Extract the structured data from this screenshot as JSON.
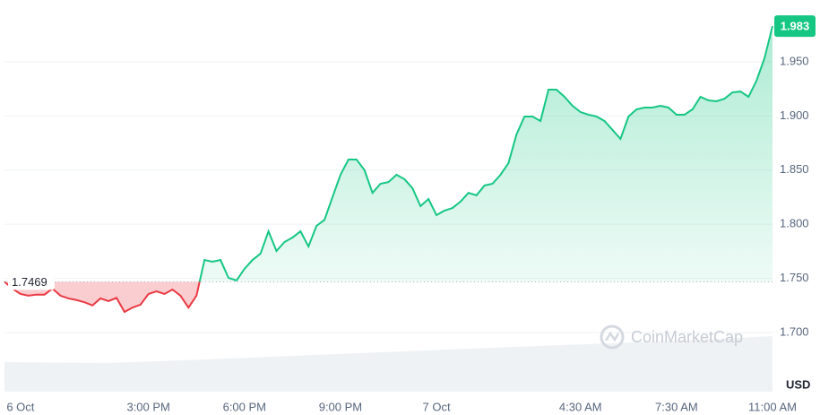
{
  "chart_data": {
    "type": "line",
    "categories": [
      null,
      null,
      "6 Oct",
      null,
      null,
      null,
      null,
      null,
      null,
      null,
      null,
      null,
      null,
      null,
      null,
      null,
      null,
      null,
      "3:00 PM",
      null,
      null,
      null,
      null,
      null,
      null,
      null,
      null,
      null,
      null,
      null,
      "6:00 PM",
      null,
      null,
      null,
      null,
      null,
      null,
      null,
      null,
      null,
      null,
      null,
      "9:00 PM",
      null,
      null,
      null,
      null,
      null,
      null,
      null,
      null,
      null,
      null,
      null,
      "7 Oct",
      null,
      null,
      null,
      null,
      null,
      null,
      null,
      null,
      null,
      null,
      null,
      null,
      null,
      null,
      null,
      null,
      null,
      "4:30 AM",
      null,
      null,
      null,
      null,
      null,
      null,
      null,
      null,
      null,
      null,
      null,
      "7:30 AM",
      null,
      null,
      null,
      null,
      null,
      null,
      null,
      null,
      null,
      null,
      null,
      "11:00 AM"
    ],
    "values": [
      1.747,
      1.7405,
      1.7356,
      1.734,
      1.735,
      1.735,
      1.7405,
      1.734,
      1.7315,
      1.73,
      1.728,
      1.725,
      1.7315,
      1.729,
      1.732,
      1.719,
      1.723,
      1.7257,
      1.7356,
      1.738,
      1.7356,
      1.7397,
      1.734,
      1.723,
      1.734,
      1.767,
      1.7654,
      1.767,
      1.7505,
      1.748,
      1.7588,
      1.767,
      1.7728,
      1.7935,
      1.7753,
      1.7836,
      1.7877,
      1.7935,
      1.7795,
      1.7985,
      1.804,
      1.825,
      1.8457,
      1.8598,
      1.8598,
      1.85,
      1.829,
      1.8374,
      1.839,
      1.8457,
      1.8416,
      1.8333,
      1.8167,
      1.8233,
      1.8084,
      1.8126,
      1.815,
      1.8209,
      1.829,
      1.8267,
      1.8358,
      1.8374,
      1.8457,
      1.8565,
      1.883,
      1.8995,
      1.8995,
      1.8954,
      1.9243,
      1.9243,
      1.9177,
      1.9094,
      1.9036,
      1.9012,
      1.8995,
      1.8954,
      1.8871,
      1.8788,
      1.8995,
      1.9061,
      1.9078,
      1.9078,
      1.9094,
      1.9078,
      1.9012,
      1.9012,
      1.9061,
      1.9177,
      1.9144,
      1.9136,
      1.916,
      1.9218,
      1.9226,
      1.9177,
      1.9326,
      1.9533,
      1.983
    ],
    "reference": 1.7469,
    "current_price": 1.983,
    "currency": "USD",
    "watermark": "CoinMarketCap",
    "up_color": "#16c784",
    "down_color": "#ea3943",
    "ylim": [
      1.645,
      2.0
    ],
    "yticks": [
      {
        "value": 1.7,
        "label": "1.700"
      },
      {
        "value": 1.75,
        "label": "1.750"
      },
      {
        "value": 1.8,
        "label": "1.800"
      },
      {
        "value": 1.85,
        "label": "1.850"
      },
      {
        "value": 1.9,
        "label": "1.900"
      },
      {
        "value": 1.95,
        "label": "1.950"
      }
    ],
    "grid": true
  }
}
